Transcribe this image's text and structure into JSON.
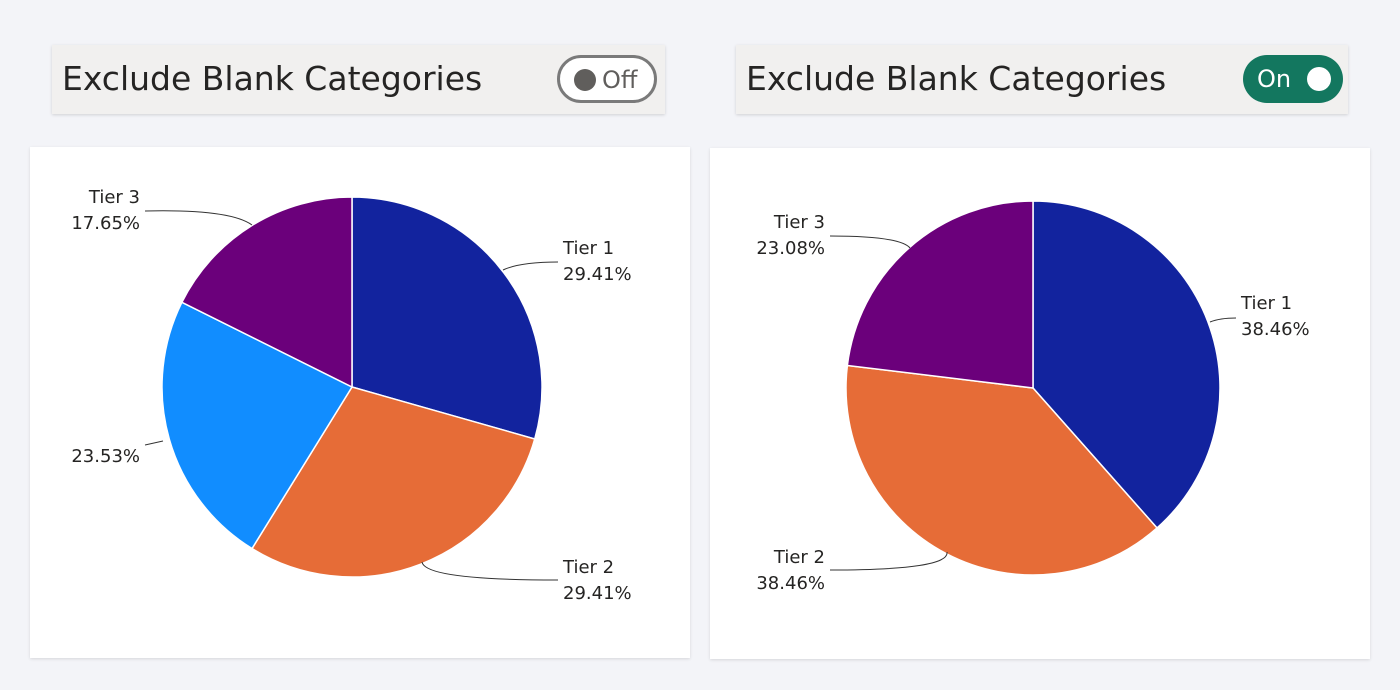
{
  "toggles": [
    {
      "label": "Exclude Blank Categories",
      "state": "Off"
    },
    {
      "label": "Exclude Blank Categories",
      "state": "On"
    }
  ],
  "colors": {
    "Tier 1": "#12239E",
    "Tier 2": "#E66C37",
    "(Blank)": "#118DFF",
    "Tier 3": "#6B007B",
    "toggle_on": "#13775F"
  },
  "chart_data": [
    {
      "type": "pie",
      "categories": [
        "Tier 1",
        "Tier 2",
        "",
        "Tier 3"
      ],
      "values": [
        29.41,
        29.41,
        23.53,
        17.65
      ],
      "labels": [
        {
          "name": "Tier 1",
          "pct": "29.41%"
        },
        {
          "name": "Tier 2",
          "pct": "29.41%"
        },
        {
          "name": "",
          "pct": "23.53%"
        },
        {
          "name": "Tier 3",
          "pct": "17.65%"
        }
      ]
    },
    {
      "type": "pie",
      "categories": [
        "Tier 1",
        "Tier 2",
        "Tier 3"
      ],
      "values": [
        38.46,
        38.46,
        23.08
      ],
      "labels": [
        {
          "name": "Tier 1",
          "pct": "38.46%"
        },
        {
          "name": "Tier 2",
          "pct": "38.46%"
        },
        {
          "name": "Tier 3",
          "pct": "23.08%"
        }
      ]
    }
  ]
}
